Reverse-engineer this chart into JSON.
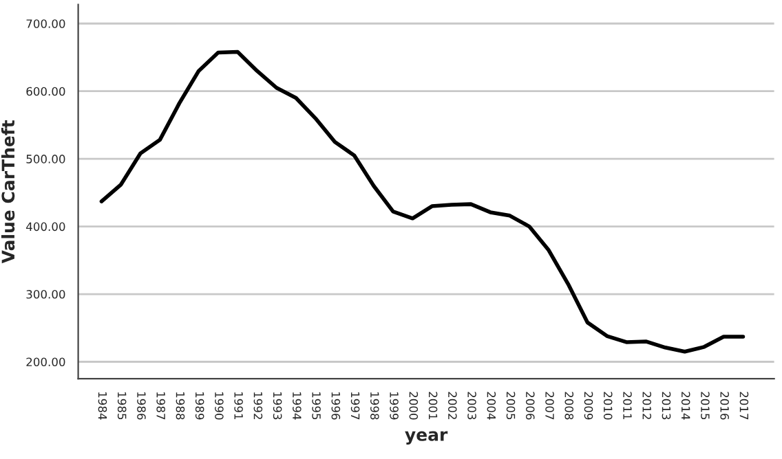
{
  "chart_data": {
    "type": "line",
    "xlabel": "year",
    "ylabel": "Value CarTheft",
    "categories": [
      "1984",
      "1985",
      "1986",
      "1987",
      "1988",
      "1989",
      "1990",
      "1991",
      "1992",
      "1993",
      "1994",
      "1995",
      "1996",
      "1997",
      "1998",
      "1999",
      "2000",
      "2001",
      "2002",
      "2003",
      "2004",
      "2005",
      "2006",
      "2007",
      "2008",
      "2009",
      "2010",
      "2011",
      "2012",
      "2013",
      "2014",
      "2015",
      "2016",
      "2017"
    ],
    "series": [
      {
        "color": "#000000",
        "values": [
          437,
          462,
          508,
          528,
          582,
          630,
          657,
          658,
          630,
          605,
          590,
          560,
          525,
          505,
          460,
          422,
          412,
          430,
          432,
          433,
          421,
          416,
          400,
          365,
          315,
          258,
          238,
          229,
          230,
          221,
          215,
          222,
          237,
          237
        ]
      }
    ],
    "ylim": [
      175,
      728
    ],
    "yticks": [
      {
        "value": 200,
        "label": "200.00"
      },
      {
        "value": 300,
        "label": "300.00"
      },
      {
        "value": 400,
        "label": "400.00"
      },
      {
        "value": 500,
        "label": "500.00"
      },
      {
        "value": 600,
        "label": "600.00"
      },
      {
        "value": 700,
        "label": "700.00"
      }
    ],
    "grid": "y",
    "marker": "none",
    "line_style": "solid"
  }
}
